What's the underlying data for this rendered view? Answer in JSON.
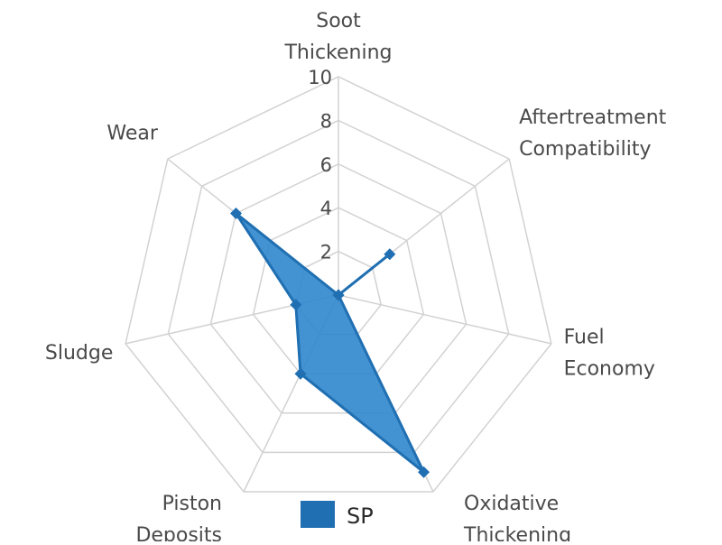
{
  "chart_data": {
    "type": "radar",
    "axes": [
      {
        "label_lines": [
          "Soot",
          "Thickening"
        ]
      },
      {
        "label_lines": [
          "Aftertreatment",
          "Compatibility"
        ]
      },
      {
        "label_lines": [
          "Fuel",
          "Economy"
        ]
      },
      {
        "label_lines": [
          "Oxidative",
          "Thickening"
        ]
      },
      {
        "label_lines": [
          "Piston",
          "Deposits"
        ]
      },
      {
        "label_lines": [
          "Sludge"
        ]
      },
      {
        "label_lines": [
          "Wear"
        ]
      }
    ],
    "rlim": [
      0,
      10
    ],
    "ticks": [
      2,
      4,
      6,
      8,
      10
    ],
    "tick_labels": [
      "2",
      "4",
      "6",
      "8",
      "10"
    ],
    "grid": true,
    "legend_position": "bottom",
    "series": [
      {
        "name": "SP",
        "values": [
          0,
          3,
          0,
          9,
          4,
          2,
          6
        ],
        "color": "#1f6fb2",
        "fill": "#2f86cc"
      }
    ]
  }
}
